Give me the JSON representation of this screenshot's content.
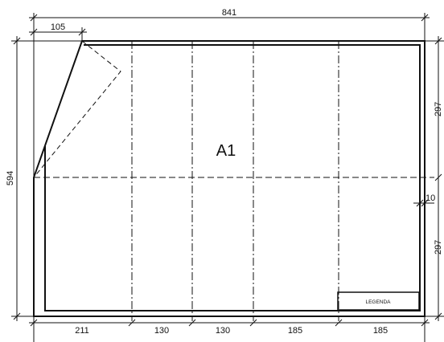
{
  "sheet": {
    "format_label": "A1",
    "legend_label": "LEGENDA"
  },
  "dimensions": {
    "total_width": "841",
    "fold_width": "105",
    "total_height": "594",
    "upper_height": "297",
    "lower_height": "297",
    "margin": "10",
    "bottom_segments": [
      "211",
      "130",
      "130",
      "185",
      "185"
    ]
  }
}
